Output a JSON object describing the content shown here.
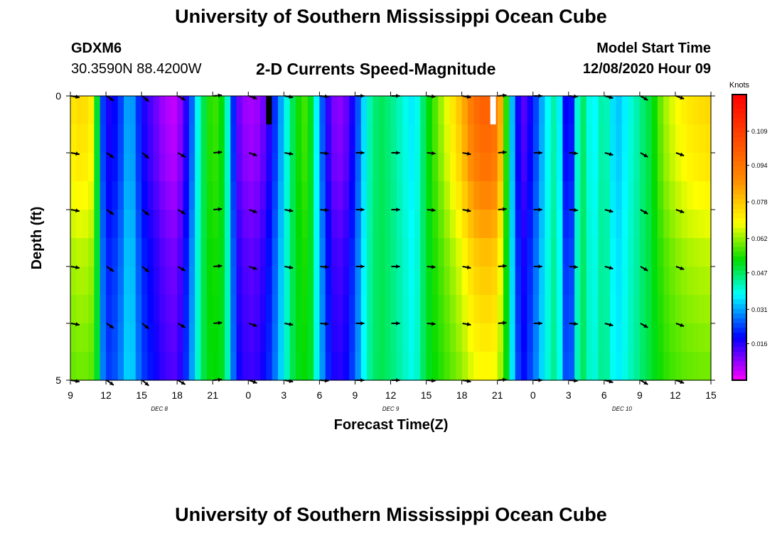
{
  "page": {
    "title_top": "University of Southern Mississippi Ocean Cube",
    "title_bottom": "University of Southern Mississippi Ocean Cube",
    "station": "GDXM6",
    "coords": "30.3590N 88.4200W",
    "subtitle": "2-D Currents Speed-Magnitude",
    "model_label": "Model Start Time",
    "model_time": "12/08/2020 Hour 09"
  },
  "chart_data": {
    "type": "heatmap",
    "title": "2-D Currents Speed-Magnitude",
    "xlabel": "Forecast Time(Z)",
    "ylabel": "Depth (ft)",
    "x_ticks": [
      "9",
      "12",
      "15",
      "18",
      "21",
      "0",
      "3",
      "6",
      "9",
      "12",
      "15",
      "18",
      "21",
      "0",
      "3",
      "6",
      "9",
      "12",
      "15"
    ],
    "x_start_hour": 9,
    "x_end_hour": 63,
    "day_labels": [
      {
        "text": "DEC  8",
        "hour": 16.5
      },
      {
        "text": "DEC  9",
        "hour": 36
      },
      {
        "text": "DEC 10",
        "hour": 55.5
      }
    ],
    "y_ticks": [
      "0",
      "5"
    ],
    "ylim": [
      0,
      5
    ],
    "colorbar": {
      "unit": "Knots",
      "ticks": [
        "0.109",
        "0.094",
        "0.078",
        "0.062",
        "0.047",
        "0.031",
        "0.016"
      ],
      "min": 0.0,
      "max": 0.125
    },
    "depth_rows": 5,
    "speed_profile": [
      {
        "h": 9,
        "v": 0.072
      },
      {
        "h": 10,
        "v": 0.075
      },
      {
        "h": 11,
        "v": 0.07
      },
      {
        "h": 11.5,
        "v": 0.03
      },
      {
        "h": 12,
        "v": 0.016
      },
      {
        "h": 13,
        "v": 0.02
      },
      {
        "h": 14,
        "v": 0.034
      },
      {
        "h": 15,
        "v": 0.018
      },
      {
        "h": 16,
        "v": 0.012
      },
      {
        "h": 17,
        "v": 0.006
      },
      {
        "h": 18,
        "v": 0.004
      },
      {
        "h": 19,
        "v": 0.02
      },
      {
        "h": 20,
        "v": 0.045
      },
      {
        "h": 21,
        "v": 0.058
      },
      {
        "h": 22,
        "v": 0.05
      },
      {
        "h": 23,
        "v": 0.012
      },
      {
        "h": 24,
        "v": 0.006
      },
      {
        "h": 25,
        "v": 0.008
      },
      {
        "h": 26,
        "v": 0.018
      },
      {
        "h": 27,
        "v": 0.035
      },
      {
        "h": 28,
        "v": 0.052
      },
      {
        "h": 29,
        "v": 0.058
      },
      {
        "h": 30,
        "v": 0.03
      },
      {
        "h": 31,
        "v": 0.01
      },
      {
        "h": 32,
        "v": 0.008
      },
      {
        "h": 33,
        "v": 0.02
      },
      {
        "h": 34,
        "v": 0.04
      },
      {
        "h": 35,
        "v": 0.048
      },
      {
        "h": 36,
        "v": 0.045
      },
      {
        "h": 37,
        "v": 0.04
      },
      {
        "h": 38,
        "v": 0.035
      },
      {
        "h": 39,
        "v": 0.05
      },
      {
        "h": 40,
        "v": 0.06
      },
      {
        "h": 41,
        "v": 0.07
      },
      {
        "h": 42,
        "v": 0.08
      },
      {
        "h": 43,
        "v": 0.095
      },
      {
        "h": 44,
        "v": 0.1
      },
      {
        "h": 45,
        "v": 0.095
      },
      {
        "h": 45.5,
        "v": 0.07
      },
      {
        "h": 46,
        "v": 0.04
      },
      {
        "h": 47,
        "v": 0.01
      },
      {
        "h": 48,
        "v": 0.02
      },
      {
        "h": 49,
        "v": 0.035
      },
      {
        "h": 50,
        "v": 0.045
      },
      {
        "h": 51,
        "v": 0.01
      },
      {
        "h": 52,
        "v": 0.05
      },
      {
        "h": 53,
        "v": 0.035
      },
      {
        "h": 54,
        "v": 0.045
      },
      {
        "h": 55,
        "v": 0.032
      },
      {
        "h": 56,
        "v": 0.038
      },
      {
        "h": 57,
        "v": 0.044
      },
      {
        "h": 58,
        "v": 0.05
      },
      {
        "h": 59,
        "v": 0.062
      },
      {
        "h": 60,
        "v": 0.068
      },
      {
        "h": 61,
        "v": 0.072
      },
      {
        "h": 62,
        "v": 0.074
      },
      {
        "h": 63,
        "v": 0.075
      }
    ],
    "depth_attenuation": [
      1.0,
      0.95,
      0.9,
      0.8,
      0.7,
      0.6,
      0.55,
      0.5,
      0.45,
      0.4
    ],
    "missing_cells": [
      {
        "hour": 25.5,
        "row": 0,
        "color": "#000000"
      },
      {
        "hour": 44.4,
        "row": 0,
        "color": "#ffffff"
      }
    ],
    "vector_hours": [
      9,
      12,
      15,
      18,
      21,
      24,
      27,
      30,
      33,
      36,
      39,
      42,
      45,
      48,
      51,
      54,
      57,
      60
    ],
    "vector_depths": [
      0,
      1,
      2,
      3,
      4,
      5
    ],
    "vector_angles_deg": [
      10,
      35,
      40,
      30,
      -5,
      20,
      10,
      5,
      0,
      0,
      5,
      10,
      -5,
      0,
      5,
      15,
      30,
      20
    ]
  }
}
